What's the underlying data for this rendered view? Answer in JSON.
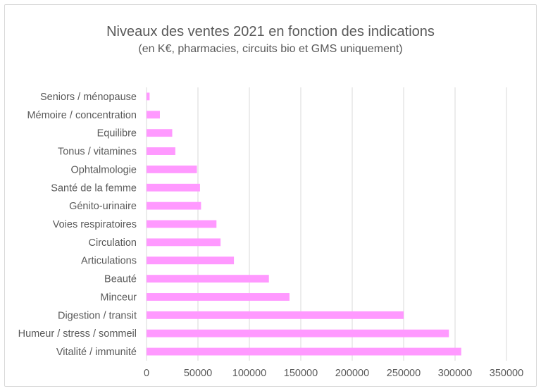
{
  "chart_data": {
    "type": "bar",
    "orientation": "horizontal",
    "title": "Niveaux des ventes 2021 en fonction des indications",
    "subtitle": "(en K€, pharmacies, circuits bio et GMS uniquement)",
    "categories": [
      "Seniors / ménopause",
      "Mémoire / concentration",
      "Equilibre",
      "Tonus / vitamines",
      "Ophtalmologie",
      "Santé de la femme",
      "Génito-urinaire",
      "Voies respiratoires",
      "Circulation",
      "Articulations",
      "Beauté",
      "Minceur",
      "Digestion / transit",
      "Humeur / stress / sommeil",
      "Vitalité / immunité"
    ],
    "values": [
      3000,
      13000,
      25000,
      28000,
      49000,
      52000,
      53000,
      68000,
      72000,
      85000,
      119000,
      139000,
      250000,
      294000,
      306000
    ],
    "xlim": [
      0,
      350000
    ],
    "xticks": [
      "0",
      "50000",
      "100000",
      "150000",
      "200000",
      "250000",
      "300000",
      "350000"
    ],
    "grid": true,
    "bar_color": "#ff99ff"
  }
}
